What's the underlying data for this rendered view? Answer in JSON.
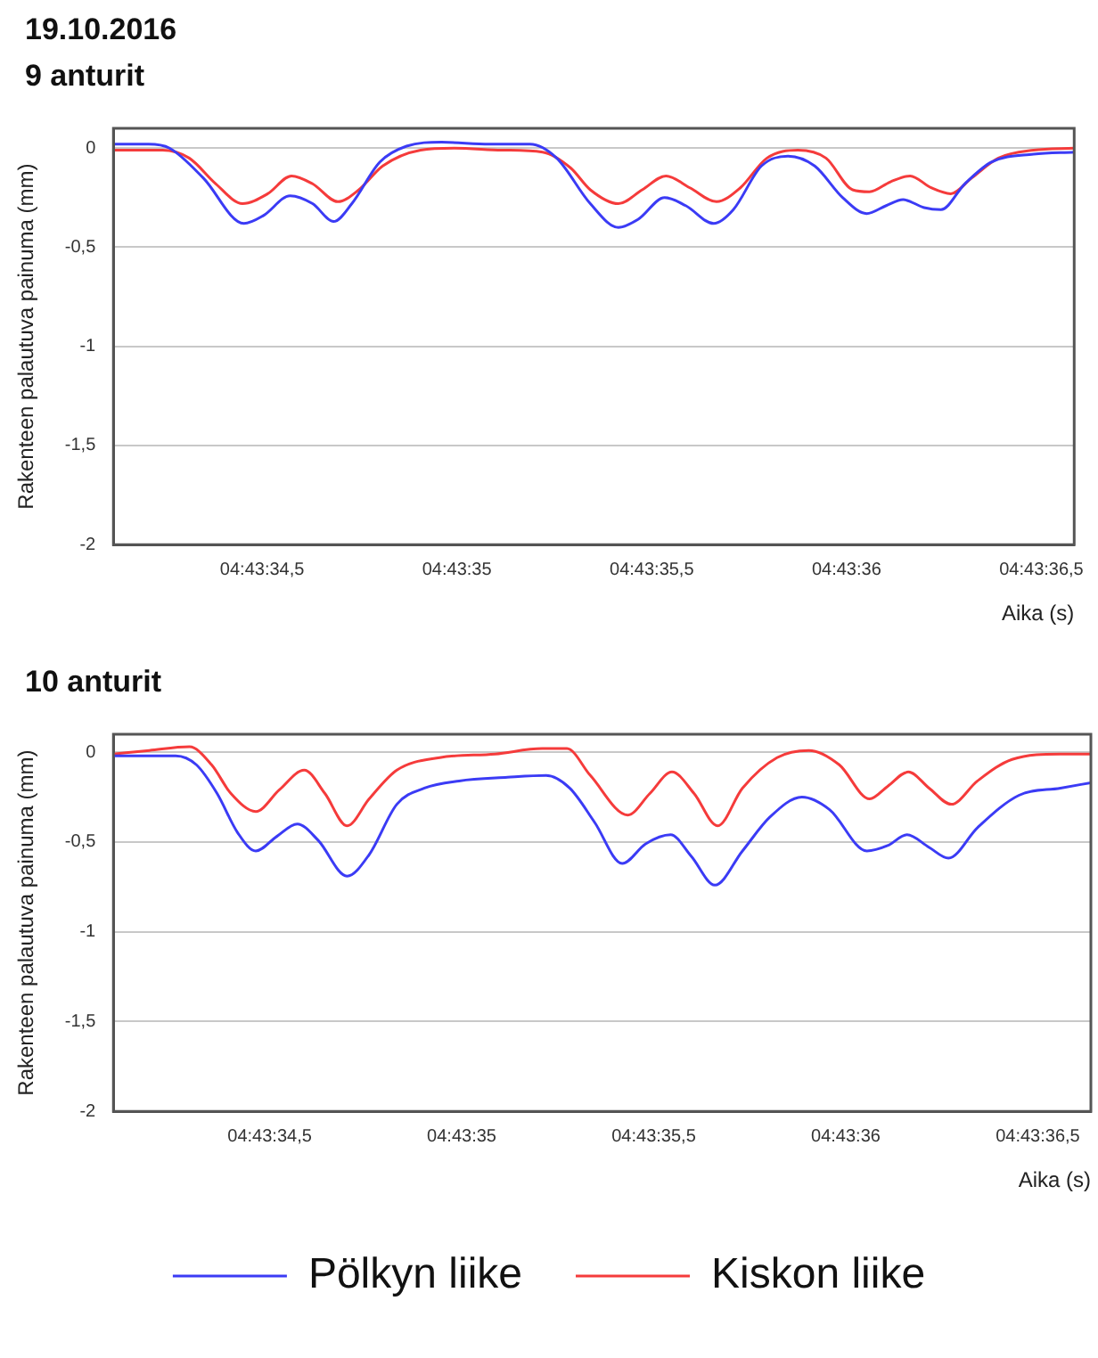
{
  "chart_data": [
    {
      "type": "line",
      "title": "19.10.2016",
      "subtitle": "9 anturit",
      "xlabel": "Aika (s)",
      "ylabel": "Rakenteen palautuva painuma (mm)",
      "xlim": [
        4.726144,
        4.726829
      ],
      "ylim": [
        -2,
        0.1
      ],
      "xticks": [
        {
          "value": 4.72625,
          "label": "04:43:34,5"
        },
        {
          "value": 4.7263889,
          "label": "04:43:35"
        },
        {
          "value": 4.7265278,
          "label": "04:43:35,5"
        },
        {
          "value": 4.7266667,
          "label": "04:43:36"
        },
        {
          "value": 4.7268056,
          "label": "04:43:36,5"
        }
      ],
      "yticks": [
        {
          "value": 0,
          "label": "0"
        },
        {
          "value": -0.5,
          "label": "-0,5"
        },
        {
          "value": -1,
          "label": "-1"
        },
        {
          "value": -1.5,
          "label": "-1,5"
        },
        {
          "value": -2,
          "label": "-2"
        }
      ],
      "grid": "y",
      "legend": false,
      "marker": "none",
      "series": [
        {
          "color": "#3b3bf5",
          "x": [
            4.726145,
            4.726169,
            4.726184,
            4.726208,
            4.726237,
            4.726251,
            4.72627,
            4.726286,
            4.726301,
            4.726314,
            4.726334,
            4.726353,
            4.726378,
            4.726412,
            4.726441,
            4.72646,
            4.726484,
            4.726504,
            4.726518,
            4.726537,
            4.726552,
            4.726572,
            4.726586,
            4.726606,
            4.726625,
            4.726644,
            4.726664,
            4.726681,
            4.726695,
            4.726707,
            4.726722,
            4.726734,
            4.726751,
            4.72677,
            4.7268,
            4.726829
          ],
          "values": [
            0.02,
            0.02,
            0,
            -0.15,
            -0.38,
            -0.34,
            -0.24,
            -0.28,
            -0.37,
            -0.28,
            -0.07,
            0.01,
            0.03,
            0.02,
            0.02,
            -0.05,
            -0.28,
            -0.4,
            -0.36,
            -0.25,
            -0.29,
            -0.38,
            -0.31,
            -0.09,
            -0.04,
            -0.09,
            -0.25,
            -0.33,
            -0.29,
            -0.26,
            -0.3,
            -0.31,
            -0.18,
            -0.07,
            -0.03,
            -0.02
          ]
        },
        {
          "color": "#f53b3b",
          "x": [
            4.726145,
            4.726179,
            4.726198,
            4.726217,
            4.726236,
            4.726254,
            4.726271,
            4.726286,
            4.726304,
            4.726319,
            4.726336,
            4.726363,
            4.726387,
            4.726421,
            4.72645,
            4.72647,
            4.726484,
            4.726504,
            4.726521,
            4.726538,
            4.726555,
            4.726574,
            4.726591,
            4.72661,
            4.726632,
            4.726652,
            4.726671,
            4.726683,
            4.726698,
            4.726712,
            4.726727,
            4.726741,
            4.726756,
            4.726775,
            4.7268,
            4.726829
          ],
          "values": [
            -0.01,
            -0.01,
            -0.05,
            -0.18,
            -0.28,
            -0.23,
            -0.14,
            -0.18,
            -0.27,
            -0.21,
            -0.09,
            -0.01,
            0,
            -0.01,
            -0.02,
            -0.1,
            -0.21,
            -0.28,
            -0.21,
            -0.14,
            -0.2,
            -0.27,
            -0.2,
            -0.05,
            -0.01,
            -0.05,
            -0.21,
            -0.22,
            -0.17,
            -0.14,
            -0.2,
            -0.23,
            -0.15,
            -0.05,
            -0.01,
            0
          ]
        }
      ]
    },
    {
      "type": "line",
      "title": "10 anturit",
      "xlabel": "Aika (s)",
      "ylabel": "Rakenteen palautuva painuma (mm)",
      "xlim": [
        4.726137,
        4.726844
      ],
      "ylim": [
        -2,
        0.1
      ],
      "xticks": [
        {
          "value": 4.72625,
          "label": "04:43:34,5"
        },
        {
          "value": 4.7263889,
          "label": "04:43:35"
        },
        {
          "value": 4.7265278,
          "label": "04:43:35,5"
        },
        {
          "value": 4.7266667,
          "label": "04:43:36"
        },
        {
          "value": 4.7268056,
          "label": "04:43:36,5"
        }
      ],
      "yticks": [
        {
          "value": 0,
          "label": "0"
        },
        {
          "value": -0.5,
          "label": "-0,5"
        },
        {
          "value": -1,
          "label": "-1"
        },
        {
          "value": -1.5,
          "label": "-1,5"
        },
        {
          "value": -2,
          "label": "-2"
        }
      ],
      "grid": "y",
      "legend": "bottom",
      "marker": "none",
      "series": [
        {
          "name": "Pölkyn liike",
          "color": "#3b3bf5",
          "x": [
            4.726137,
            4.726182,
            4.726197,
            4.726212,
            4.726227,
            4.72624,
            4.726255,
            4.72627,
            4.726285,
            4.726306,
            4.726322,
            4.726342,
            4.726362,
            4.726387,
            4.726422,
            4.72645,
            4.726467,
            4.726485,
            4.726505,
            4.726522,
            4.72654,
            4.726555,
            4.726572,
            4.726592,
            4.726612,
            4.726635,
            4.726655,
            4.726682,
            4.726697,
            4.726711,
            4.726727,
            4.726741,
            4.726762,
            4.726792,
            4.726822,
            4.726844
          ],
          "values": [
            -0.02,
            -0.02,
            -0.07,
            -0.23,
            -0.45,
            -0.55,
            -0.47,
            -0.4,
            -0.49,
            -0.69,
            -0.57,
            -0.29,
            -0.2,
            -0.16,
            -0.14,
            -0.13,
            -0.2,
            -0.39,
            -0.62,
            -0.51,
            -0.46,
            -0.58,
            -0.74,
            -0.55,
            -0.36,
            -0.25,
            -0.32,
            -0.55,
            -0.52,
            -0.46,
            -0.53,
            -0.59,
            -0.42,
            -0.24,
            -0.2,
            -0.17
          ]
        },
        {
          "name": "Kiskon liike",
          "color": "#f53b3b",
          "x": [
            4.726137,
            4.726163,
            4.726192,
            4.726208,
            4.726222,
            4.72624,
            4.726257,
            4.726275,
            4.72629,
            4.726306,
            4.726322,
            4.726342,
            4.726373,
            4.726413,
            4.726447,
            4.726465,
            4.726482,
            4.726509,
            4.726525,
            4.726541,
            4.726557,
            4.726574,
            4.726592,
            4.726617,
            4.72664,
            4.726662,
            4.726684,
            4.726697,
            4.726712,
            4.726727,
            4.726743,
            4.726762,
            4.726787,
            4.726822,
            4.726844
          ],
          "values": [
            -0.01,
            0.01,
            0.03,
            -0.07,
            -0.23,
            -0.33,
            -0.21,
            -0.1,
            -0.23,
            -0.41,
            -0.26,
            -0.1,
            -0.03,
            -0.01,
            0.02,
            0.02,
            -0.13,
            -0.35,
            -0.23,
            -0.11,
            -0.23,
            -0.41,
            -0.2,
            -0.03,
            0.01,
            -0.07,
            -0.26,
            -0.19,
            -0.11,
            -0.2,
            -0.29,
            -0.16,
            -0.04,
            -0.01,
            -0.01
          ]
        }
      ]
    }
  ]
}
